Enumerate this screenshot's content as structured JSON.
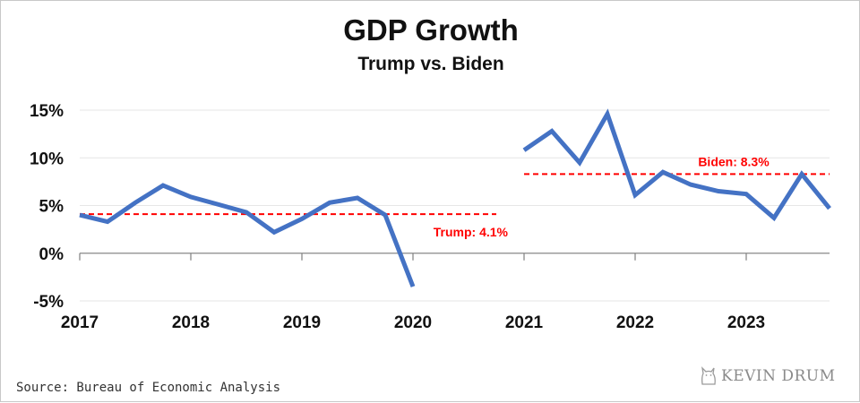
{
  "title": "GDP Growth",
  "subtitle": "Trump vs. Biden",
  "source": "Source: Bureau of Economic Analysis",
  "logo": {
    "text": "KEVIN DRUM",
    "icon": "cat-icon"
  },
  "colors": {
    "series": "#4472c4",
    "average": "#ff0000",
    "grid": "#e6e6e6",
    "axis": "#888888"
  },
  "chart_data": {
    "type": "line",
    "title": "GDP Growth",
    "subtitle": "Trump vs. Biden",
    "xlabel": "",
    "ylabel": "",
    "ylim": [
      -5,
      15
    ],
    "yticks": [
      15,
      10,
      5,
      0,
      -5
    ],
    "ytick_labels": [
      "15%",
      "10%",
      "5%",
      "0%",
      "-5%"
    ],
    "xlim": [
      2017,
      2023.75
    ],
    "xticks": [
      2017,
      2018,
      2019,
      2020,
      2021,
      2022,
      2023
    ],
    "xtick_labels": [
      "2017",
      "2018",
      "2019",
      "2020",
      "2021",
      "2022",
      "2023"
    ],
    "grid": true,
    "x_axis_style": "axis line at 0%",
    "series": [
      {
        "x": [
          2017,
          2017.25,
          2017.5,
          2017.75,
          2018,
          2018.25,
          2018.5,
          2018.75,
          2019,
          2019.25,
          2019.5,
          2019.75,
          2020
        ],
        "values": [
          4.0,
          3.3,
          5.3,
          7.1,
          5.9,
          5.1,
          4.3,
          2.2,
          3.6,
          5.3,
          5.8,
          4.0,
          -3.5
        ]
      },
      {
        "x": [
          2021,
          2021.25,
          2021.5,
          2021.75,
          2022,
          2022.25,
          2022.5,
          2022.75,
          2023,
          2023.25,
          2023.5,
          2023.75
        ],
        "values": [
          10.8,
          12.8,
          9.5,
          14.6,
          6.1,
          8.5,
          7.2,
          6.5,
          6.2,
          3.7,
          8.3,
          4.7
        ]
      }
    ],
    "reference_lines": [
      {
        "label": "Trump: 4.1%",
        "value": 4.1,
        "x_range": [
          2017,
          2020.75
        ]
      },
      {
        "label": "Biden: 8.3%",
        "value": 8.3,
        "x_range": [
          2021,
          2023.75
        ]
      }
    ]
  }
}
